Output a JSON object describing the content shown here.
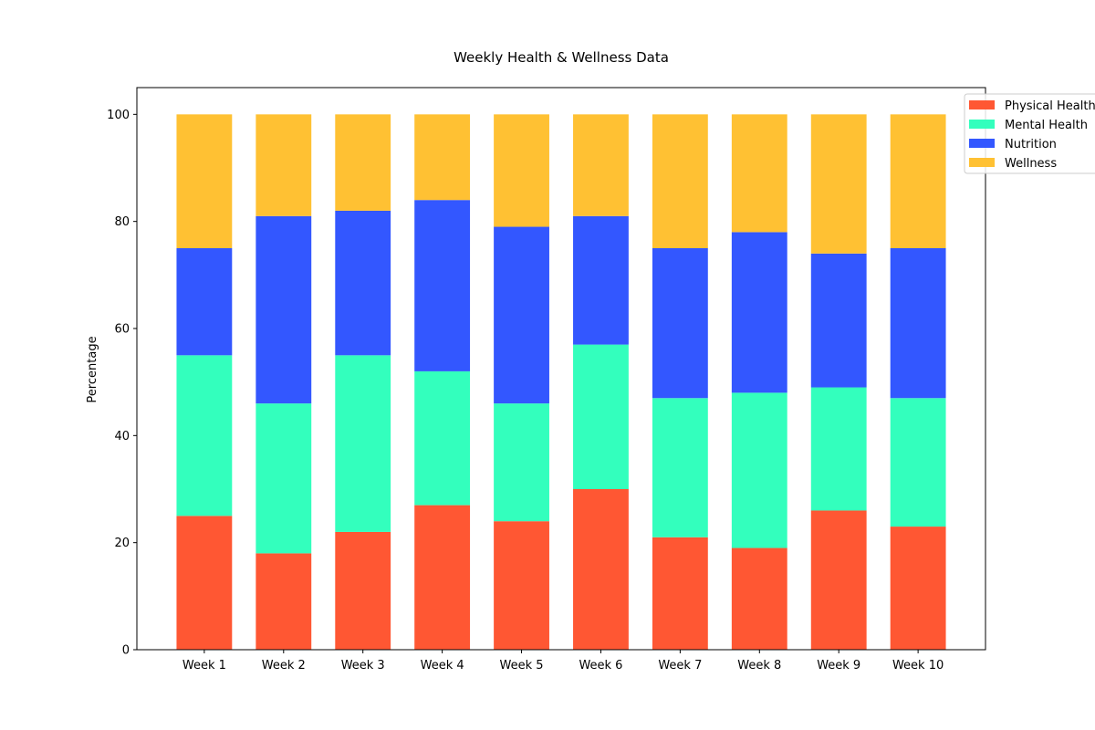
{
  "chart_data": {
    "type": "bar",
    "stacked": true,
    "title": "Weekly Health & Wellness Data",
    "xlabel": "",
    "ylabel": "Percentage",
    "ylim": [
      0,
      105
    ],
    "yticks": [
      0,
      20,
      40,
      60,
      80,
      100
    ],
    "grid": false,
    "legend_position": "upper right, outside plot",
    "categories": [
      "Week 1",
      "Week 2",
      "Week 3",
      "Week 4",
      "Week 5",
      "Week 6",
      "Week 7",
      "Week 8",
      "Week 9",
      "Week 10"
    ],
    "series": [
      {
        "name": "Physical Health",
        "color": "#ff5733",
        "values": [
          25,
          18,
          22,
          27,
          24,
          30,
          21,
          19,
          26,
          23
        ]
      },
      {
        "name": "Mental Health",
        "color": "#33ffbd",
        "values": [
          30,
          28,
          33,
          25,
          22,
          27,
          26,
          29,
          23,
          24
        ]
      },
      {
        "name": "Nutrition",
        "color": "#3357ff",
        "values": [
          20,
          35,
          27,
          32,
          33,
          24,
          28,
          30,
          25,
          28
        ]
      },
      {
        "name": "Wellness",
        "color": "#ffc133",
        "values": [
          25,
          19,
          18,
          16,
          21,
          19,
          25,
          22,
          26,
          25
        ]
      }
    ]
  }
}
